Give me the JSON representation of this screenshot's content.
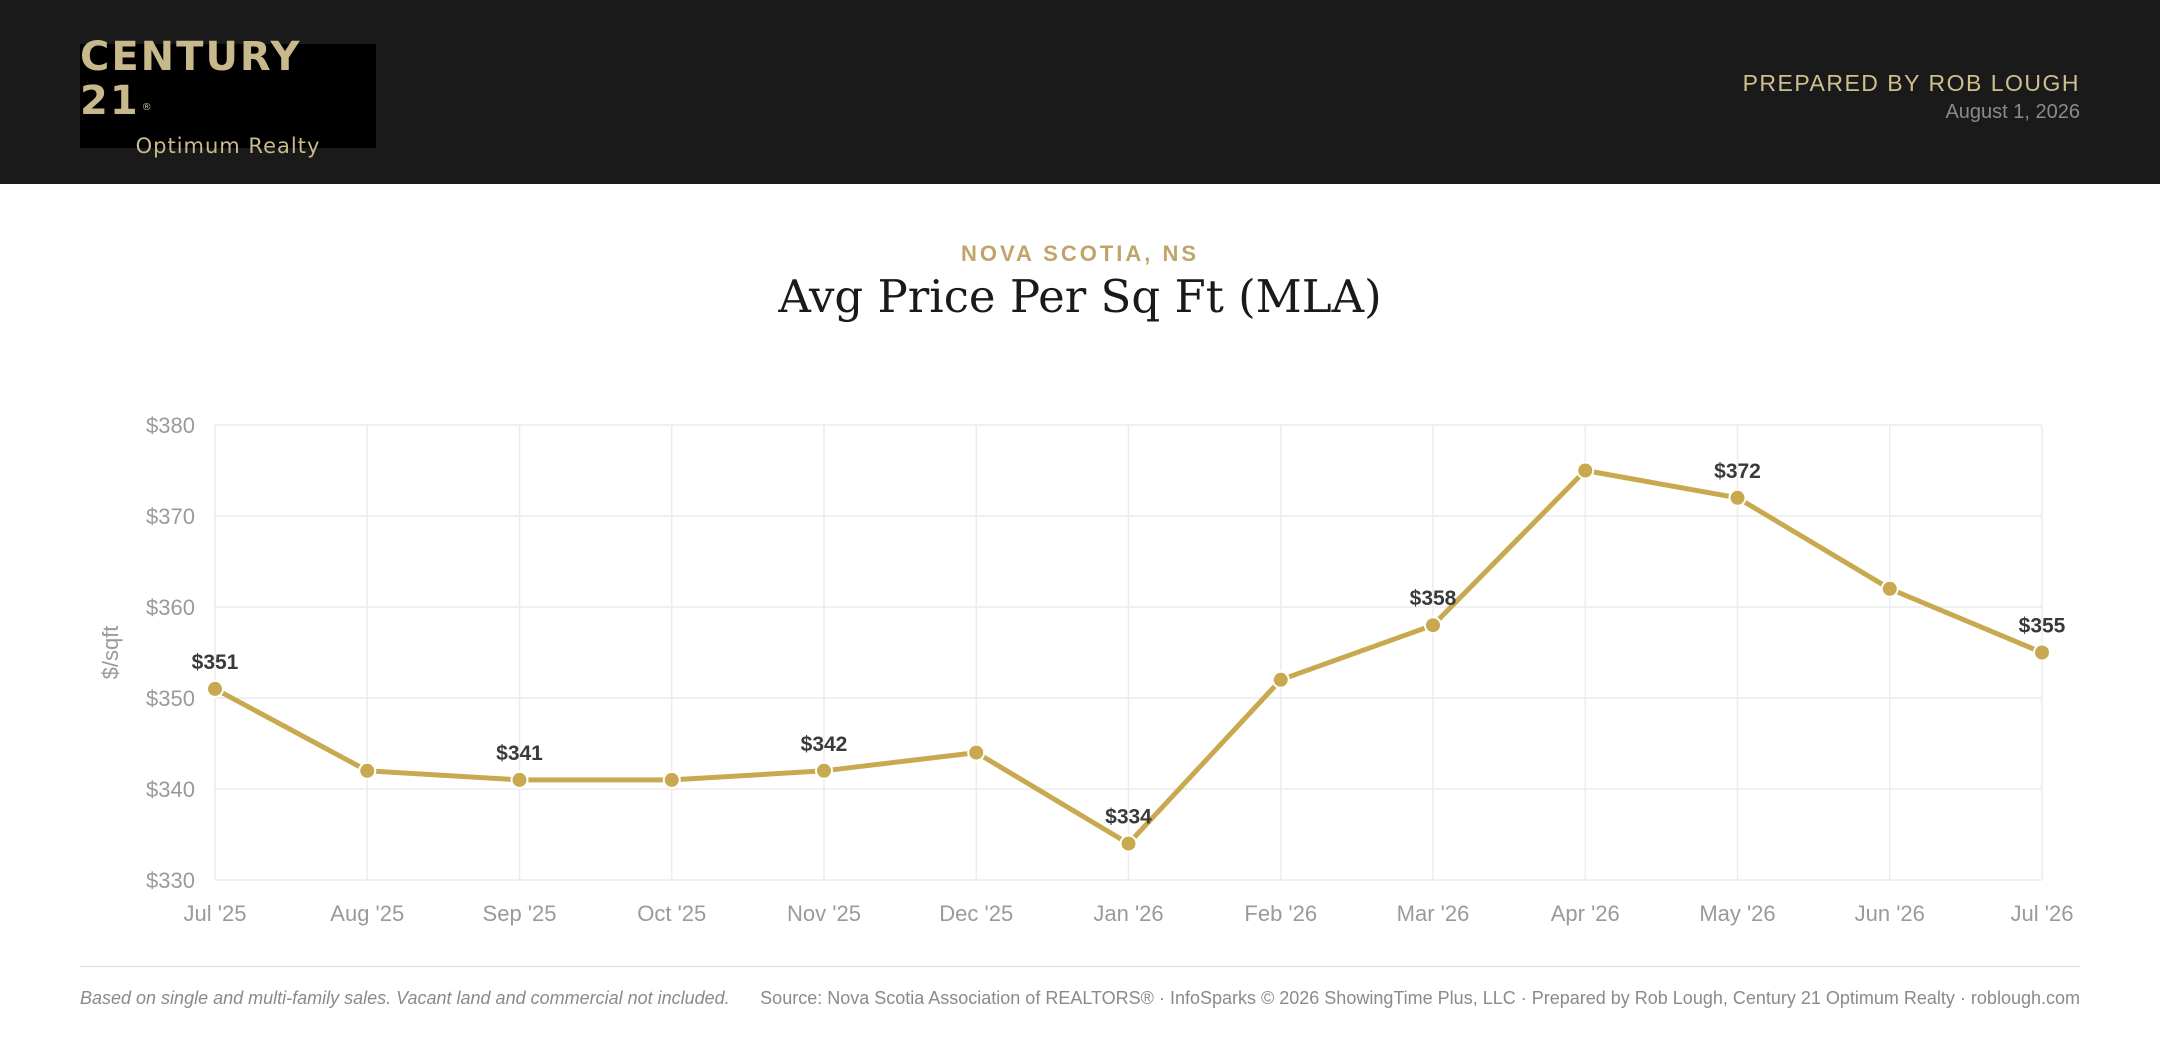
{
  "header": {
    "logo_name": "CENTURY 21",
    "logo_mark": "®",
    "logo_sub": "Optimum Realty",
    "prepared_by": "PREPARED BY ROB LOUGH",
    "date": "August 1, 2026"
  },
  "location": "NOVA SCOTIA, NS",
  "title": "Avg Price Per Sq Ft (MLA)",
  "chart_data": {
    "type": "line",
    "title": "Avg Price Per Sq Ft (MLA)",
    "ylabel": "$/sqft",
    "xlabel": "",
    "categories": [
      "Jul '25",
      "Aug '25",
      "Sep '25",
      "Oct '25",
      "Nov '25",
      "Dec '25",
      "Jan '26",
      "Feb '26",
      "Mar '26",
      "Apr '26",
      "May '26",
      "Jun '26",
      "Jul '26"
    ],
    "series": [
      {
        "values": [
          351,
          342,
          341,
          341,
          342,
          344,
          334,
          352,
          358,
          375,
          372,
          362,
          355
        ]
      }
    ],
    "labeled_indices": [
      0,
      2,
      4,
      6,
      8,
      10,
      12
    ],
    "data_labels": [
      "$351",
      "$341",
      "$342",
      "$334",
      "$358",
      "$372",
      "$355"
    ],
    "ylim": [
      330,
      380
    ],
    "yticks": [
      330,
      340,
      350,
      360,
      370,
      380
    ],
    "ytick_labels": [
      "$330",
      "$340",
      "$350",
      "$360",
      "$370",
      "$380"
    ],
    "grid": true,
    "legend": "none",
    "color": "#c9a94f"
  },
  "footer": {
    "note": "Based on single and multi-family sales. Vacant land and commercial not included.",
    "source": "Source: Nova Scotia Association of REALTORS® · InfoSparks © 2026 ShowingTime Plus, LLC · Prepared by Rob Lough, Century 21 Optimum Realty · roblough.com"
  }
}
